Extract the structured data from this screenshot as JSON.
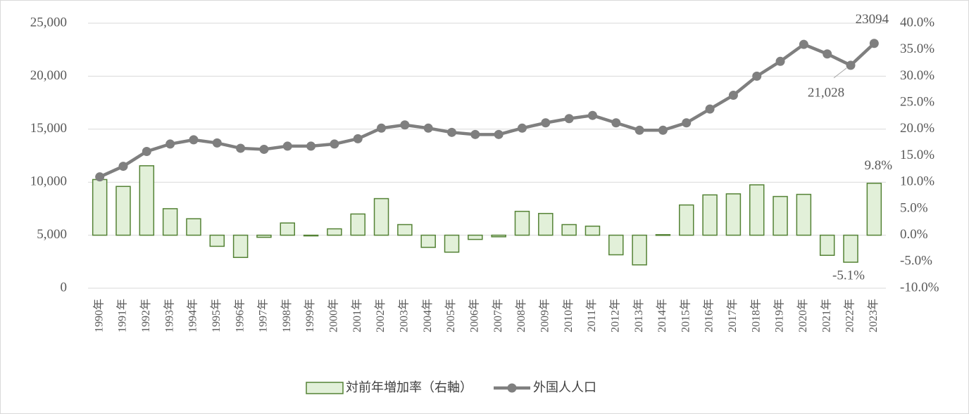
{
  "chart_data": {
    "type": "combo",
    "categories": [
      "1990年",
      "1991年",
      "1992年",
      "1993年",
      "1994年",
      "1995年",
      "1996年",
      "1997年",
      "1998年",
      "1999年",
      "2000年",
      "2001年",
      "2002年",
      "2003年",
      "2004年",
      "2005年",
      "2006年",
      "2007年",
      "2008年",
      "2009年",
      "2010年",
      "2011年",
      "2012年",
      "2013年",
      "2014年",
      "2015年",
      "2016年",
      "2017年",
      "2018年",
      "2019年",
      "2020年",
      "2021年",
      "2022年",
      "2023年"
    ],
    "series": [
      {
        "name": "対前年増加率（右軸）",
        "type": "bar",
        "axis": "y2",
        "color": "#e2f0d9",
        "edgecolor": "#548235",
        "values": [
          10.5,
          9.2,
          13.1,
          5.0,
          3.1,
          -2.1,
          -4.2,
          -0.4,
          2.3,
          -0.1,
          1.2,
          4.0,
          6.9,
          2.0,
          -2.3,
          -3.2,
          -0.8,
          -0.3,
          4.5,
          4.1,
          2.0,
          1.7,
          -3.7,
          -5.6,
          0.1,
          5.7,
          7.6,
          7.8,
          9.5,
          7.3,
          7.7,
          -3.8,
          -5.1,
          9.8
        ],
        "value_labels": [
          null,
          null,
          null,
          null,
          null,
          null,
          null,
          null,
          null,
          null,
          null,
          null,
          null,
          null,
          null,
          null,
          null,
          null,
          null,
          null,
          null,
          null,
          null,
          null,
          null,
          null,
          null,
          null,
          null,
          null,
          null,
          null,
          "-5.1%",
          "9.8%"
        ]
      },
      {
        "name": "外国人人口",
        "type": "line",
        "color": "#7f7f7f",
        "values": [
          10500,
          11500,
          12900,
          13600,
          14000,
          13700,
          13200,
          13100,
          13400,
          13400,
          13600,
          14100,
          15100,
          15400,
          15100,
          14700,
          14500,
          14500,
          15100,
          15600,
          16000,
          16300,
          15600,
          14900,
          14900,
          15600,
          16900,
          18200,
          20000,
          21400,
          23000,
          22100,
          21028,
          23094
        ],
        "value_labels": [
          null,
          null,
          null,
          null,
          null,
          null,
          null,
          null,
          null,
          null,
          null,
          null,
          null,
          null,
          null,
          null,
          null,
          null,
          null,
          null,
          null,
          null,
          null,
          null,
          null,
          null,
          null,
          null,
          null,
          null,
          null,
          null,
          "21,028",
          "23094"
        ]
      }
    ],
    "ylim": [
      0,
      25000
    ],
    "yticks": [
      0,
      {
        "value": 5000,
        "label": "5,000"
      },
      {
        "value": 10000,
        "label": "10,000"
      },
      {
        "value": 15000,
        "label": "15,000"
      },
      {
        "value": 20000,
        "label": "20,000"
      },
      {
        "value": 25000,
        "label": "25,000"
      }
    ],
    "y2lim": [
      -10,
      40
    ],
    "y2ticks": [
      {
        "value": -10,
        "label": "-10.0%"
      },
      {
        "value": -5,
        "label": "-5.0%"
      },
      {
        "value": 0,
        "label": "0.0%"
      },
      {
        "value": 5,
        "label": "5.0%"
      },
      {
        "value": 10,
        "label": "10.0%"
      },
      {
        "value": 15,
        "label": "15.0%"
      },
      {
        "value": 20,
        "label": "20.0%"
      },
      {
        "value": 25,
        "label": "25.0%"
      },
      {
        "value": 30,
        "label": "30.0%"
      },
      {
        "value": 35,
        "label": "35.0%"
      },
      {
        "value": 40,
        "label": "40.0%"
      }
    ],
    "grid": true,
    "legend": "bottom"
  }
}
